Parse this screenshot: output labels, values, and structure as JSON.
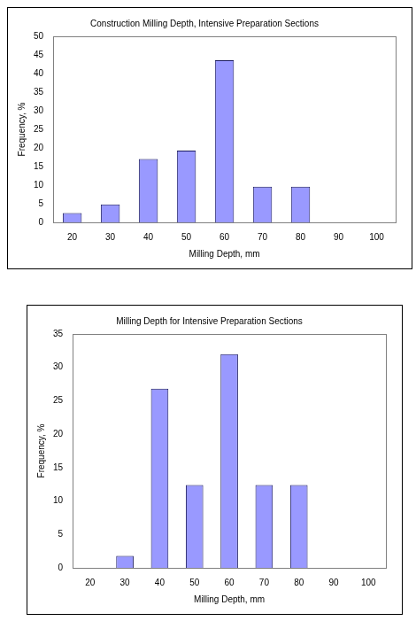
{
  "chart_data": [
    {
      "type": "bar",
      "title": "Construction Milling Depth, Intensive Preparation Sections",
      "x_label": "Milling Depth, mm",
      "y_label": "Frequency, %",
      "categories": [
        "20",
        "30",
        "40",
        "50",
        "60",
        "70",
        "80",
        "90",
        "100"
      ],
      "values": [
        2.5,
        4.8,
        17,
        19.3,
        43.6,
        9.6,
        9.6,
        0,
        0
      ],
      "color": "#9999ff",
      "ylim": [
        0,
        50
      ],
      "yticks": [
        0,
        5,
        10,
        15,
        20,
        25,
        30,
        35,
        40,
        45,
        50
      ],
      "grid": false
    },
    {
      "type": "bar",
      "title": "Milling Depth for Intensive Preparation Sections",
      "x_label": "Milling Depth, mm",
      "y_label": "Frequency, %",
      "categories": [
        "20",
        "30",
        "40",
        "50",
        "60",
        "70",
        "80",
        "90",
        "100"
      ],
      "values": [
        0,
        1.8,
        26.8,
        12.4,
        32,
        12.4,
        12.4,
        0,
        0
      ],
      "color": "#9999ff",
      "ylim": [
        0,
        35
      ],
      "yticks": [
        0,
        5,
        10,
        15,
        20,
        25,
        30,
        35
      ],
      "grid": false
    }
  ]
}
